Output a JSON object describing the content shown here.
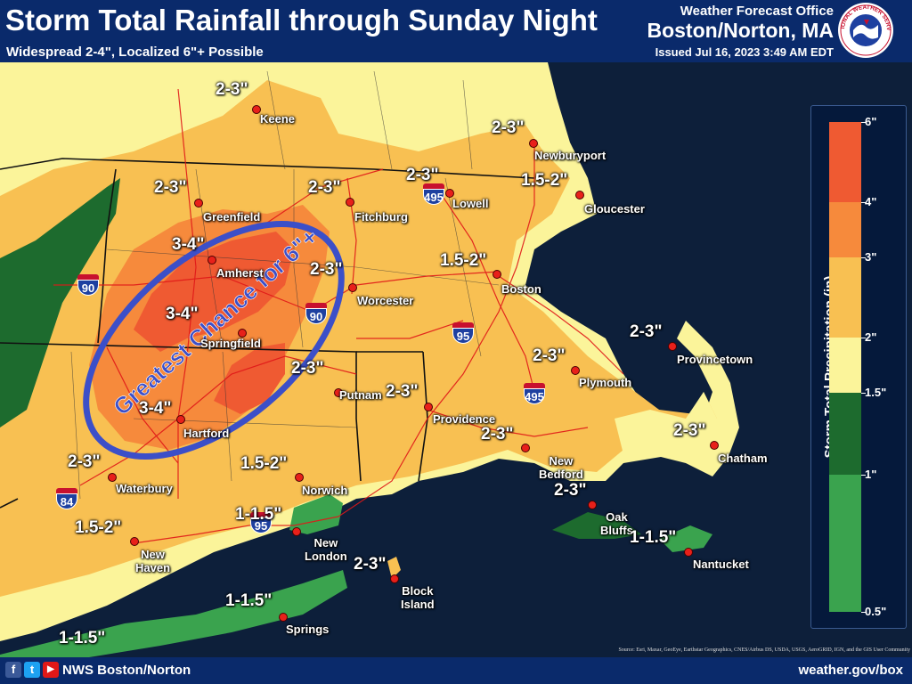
{
  "header": {
    "title": "Storm Total Rainfall through Sunday Night",
    "subtitle": "Widespread 2-4\", Localized 6\"+ Possible",
    "office": "Weather Forecast Office",
    "location": "Boston/Norton, MA",
    "issued": "Issued Jul 16, 2023 3:49 AM EDT",
    "seal_text": "NATIONAL WEATHER SERVICE"
  },
  "highlight": {
    "text": "Greatest Chance for 6\"+",
    "color": "#3c4fc8"
  },
  "legend": {
    "title": "Storm Total Precipitation (in)",
    "bands": [
      {
        "label": "6\"",
        "color": "#ef5a32"
      },
      {
        "label": "4\"",
        "color": "#f68a3c"
      },
      {
        "label": "3\"",
        "color": "#f8c052"
      },
      {
        "label": "2\"",
        "color": "#fbf49a"
      },
      {
        "label": "1.5\"",
        "color": "#1d6b2e"
      },
      {
        "label": "1\"",
        "color": "#3aa34e"
      },
      {
        "label": "0.5\"",
        "color": "#3aa34e"
      }
    ]
  },
  "amounts": [
    "2-3\"",
    "2-3\"",
    "2-3\"",
    "2-3\"",
    "1.5-2\"",
    "2-3\"",
    "3-4\"",
    "2-3\"",
    "1.5-2\"",
    "3-4\"",
    "3-4\"",
    "2-3\"",
    "2-3\"",
    "2-3\"",
    "2-3\"",
    "2-3\"",
    "2-3\"",
    "2-3\"",
    "1.5-2\"",
    "1.5-2\"",
    "1-1.5\"",
    "2-3\"",
    "1-1.5\"",
    "2-3\"",
    "1-1.5\"",
    "1-1.5\""
  ],
  "towns": [
    "Keene",
    "Newburyport",
    "Lowell",
    "Gloucester",
    "Greenfield",
    "Fitchburg",
    "Amherst",
    "Worcester",
    "Boston",
    "Springfield",
    "Provincetown",
    "Plymouth",
    "Putnam",
    "Hartford",
    "Providence",
    "Chatham",
    "New\nBedford",
    "Waterbury",
    "Norwich",
    "Oak\nBluffs",
    "New\nLondon",
    "Nantucket",
    "New\nHaven",
    "Block\nIsland",
    "Springs"
  ],
  "highways": [
    "90",
    "90",
    "95",
    "95",
    "495",
    "495",
    "84"
  ],
  "footer": {
    "handle": "NWS Boston/Norton",
    "url": "weather.gov/box",
    "social": [
      "f",
      "t",
      "▶"
    ]
  },
  "source": "Source: Esri, Maxar, GeoEye, Earthstar Geographics, CNES/Airbus DS, USDA, USGS, AeroGRID, IGN, and the GIS User Community",
  "colors": {
    "water": "#0b1e3f",
    "header": "#0a2a6b",
    "dot": "#e8201a",
    "roads": "#e01818",
    "boundaries": "#111111"
  }
}
